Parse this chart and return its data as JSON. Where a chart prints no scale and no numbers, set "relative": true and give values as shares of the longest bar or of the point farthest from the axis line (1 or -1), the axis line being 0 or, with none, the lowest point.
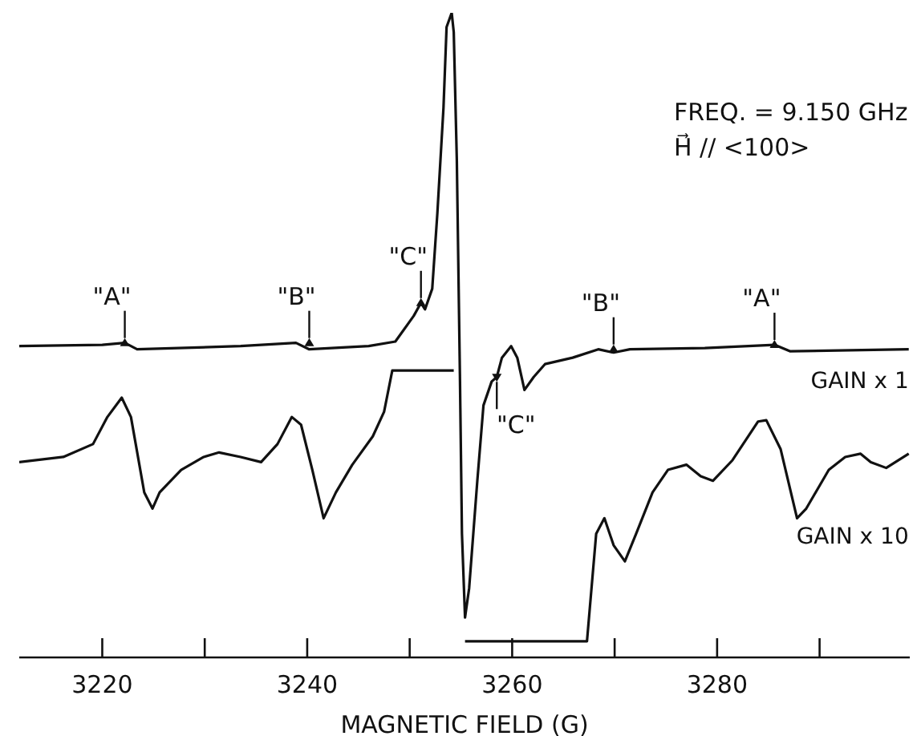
{
  "chart_data": {
    "type": "line",
    "relative": true,
    "xlabel": "MAGNETIC FIELD (G)",
    "xlim": [
      3211.9,
      3298.8
    ],
    "xticks": [
      3220,
      {
        "value": 3230,
        "label": null
      },
      3240,
      {
        "value": 3250,
        "label": null
      },
      3260,
      {
        "value": 3270,
        "label": null
      },
      3280,
      {
        "value": 3290,
        "label": null
      }
    ],
    "series": [
      {
        "name": "GAIN x 1",
        "color": "#111111",
        "x": [
          3211.9,
          3220.0,
          3222.2,
          3223.4,
          3233.5,
          3238.9,
          3240.2,
          3246.0,
          3248.6,
          3250.4,
          3251.1,
          3251.5,
          3252.2,
          3252.7,
          3253.3,
          3253.6,
          3254.1,
          3254.3,
          3254.6,
          3254.9,
          3255.1,
          3255.4,
          3255.8,
          3256.6,
          3257.2,
          3258.0,
          3258.5,
          3259.0,
          3259.9,
          3260.5,
          3261.2,
          3262.1,
          3263.2,
          3265.9,
          3268.4,
          3269.9,
          3271.5,
          3278.8,
          3285.6,
          3287.1,
          3298.7
        ],
        "values": [
          0.483,
          0.485,
          0.488,
          0.478,
          0.483,
          0.488,
          0.478,
          0.483,
          0.49,
          0.53,
          0.55,
          0.54,
          0.572,
          0.689,
          0.853,
          0.978,
          1.0,
          0.97,
          0.771,
          0.44,
          0.192,
          0.062,
          0.107,
          0.274,
          0.391,
          0.428,
          0.435,
          0.465,
          0.483,
          0.465,
          0.415,
          0.435,
          0.455,
          0.465,
          0.478,
          0.473,
          0.478,
          0.48,
          0.485,
          0.475,
          0.478
        ]
      },
      {
        "name": "GAIN x 10",
        "color": "#111111",
        "x": [
          3211.9,
          3216.2,
          3219.1,
          3220.5,
          3221.9,
          3222.8,
          3224.1,
          3224.9,
          3225.6,
          3227.7,
          3229.9,
          3231.4,
          3233.5,
          3235.5,
          3237.1,
          3238.5,
          3239.4,
          3240.5,
          3241.6,
          3242.8,
          3244.4,
          3246.4,
          3247.5,
          3248.3,
          3254.3,
          3255.0,
          3255.4,
          3267.3,
          3268.2,
          3269.0,
          3269.9,
          3271.0,
          3272.1,
          3273.7,
          3275.2,
          3277.0,
          3278.4,
          3279.6,
          3281.5,
          3284.0,
          3284.8,
          3286.2,
          3287.8,
          3288.7,
          3290.9,
          3292.5,
          3294.0,
          3295.0,
          3296.5,
          3298.7
        ],
        "values": [
          0.303,
          0.311,
          0.331,
          0.373,
          0.403,
          0.373,
          0.256,
          0.231,
          0.256,
          0.291,
          0.311,
          0.318,
          0.311,
          0.303,
          0.331,
          0.373,
          0.361,
          0.291,
          0.216,
          0.256,
          0.299,
          0.343,
          0.381,
          0.445,
          0.445,
          null,
          0.025,
          0.025,
          0.192,
          0.216,
          0.174,
          0.149,
          0.192,
          0.256,
          0.291,
          0.299,
          0.281,
          0.274,
          0.306,
          0.366,
          0.368,
          0.323,
          0.216,
          0.231,
          0.291,
          0.311,
          0.316,
          0.303,
          0.294,
          0.316
        ]
      }
    ],
    "annotations": [
      "FREQ. = 9.150 GHz",
      "H⃗ // <100>",
      {
        "text": "\"A\"",
        "x": 3222.2,
        "y": 0.488
      },
      {
        "text": "\"B\"",
        "x": 3240.2,
        "y": 0.488
      },
      {
        "text": "\"C\"",
        "x": 3251.1,
        "y": 0.55
      },
      {
        "text": "\"C\"",
        "x": 3258.5,
        "y": 0.435
      },
      {
        "text": "\"B\"",
        "x": 3269.9,
        "y": 0.478
      },
      {
        "text": "\"A\"",
        "x": 3285.6,
        "y": 0.485
      }
    ]
  }
}
